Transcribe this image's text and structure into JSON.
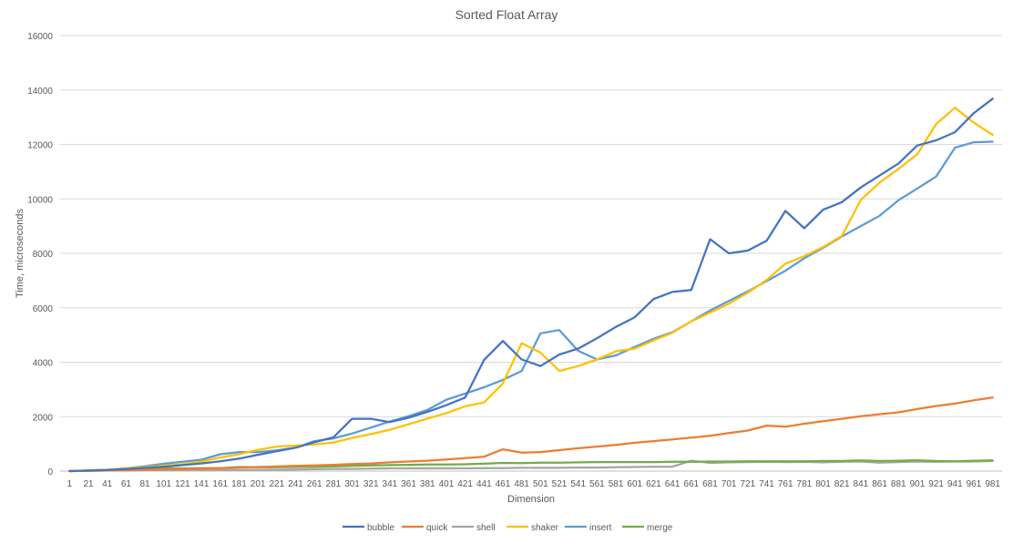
{
  "chart_data": {
    "type": "line",
    "title": "Sorted Float Array",
    "xlabel": "Dimension",
    "ylabel": "Time, microseconds",
    "ylim": [
      0,
      16000
    ],
    "yticks": [
      0,
      2000,
      4000,
      6000,
      8000,
      10000,
      12000,
      14000,
      16000
    ],
    "grid": true,
    "legend_position": "bottom",
    "x": [
      1,
      21,
      41,
      61,
      81,
      101,
      121,
      141,
      161,
      181,
      201,
      221,
      241,
      261,
      281,
      301,
      321,
      341,
      361,
      381,
      401,
      421,
      441,
      461,
      481,
      501,
      521,
      541,
      561,
      581,
      601,
      621,
      641,
      661,
      681,
      701,
      721,
      741,
      761,
      781,
      801,
      821,
      841,
      861,
      881,
      901,
      921,
      941,
      961,
      981
    ],
    "series": [
      {
        "name": "bubble",
        "color": "#4472c4",
        "values": [
          0,
          20,
          40,
          80,
          120,
          160,
          220,
          280,
          360,
          460,
          600,
          730,
          860,
          1060,
          1240,
          1920,
          1920,
          1800,
          1960,
          2180,
          2420,
          2700,
          4080,
          4780,
          4100,
          3860,
          4280,
          4500,
          4880,
          5300,
          5650,
          6320,
          6580,
          6650,
          8520,
          8000,
          8100,
          8460,
          9560,
          8920,
          9600,
          9880,
          10420,
          10860,
          11300,
          11960,
          12150,
          12450,
          13150,
          13680
        ]
      },
      {
        "name": "quick",
        "color": "#ed7d31",
        "values": [
          0,
          10,
          20,
          30,
          40,
          60,
          80,
          90,
          110,
          130,
          150,
          170,
          190,
          210,
          230,
          260,
          280,
          320,
          350,
          380,
          430,
          480,
          530,
          800,
          680,
          700,
          770,
          840,
          900,
          960,
          1040,
          1100,
          1160,
          1230,
          1300,
          1400,
          1490,
          1670,
          1630,
          1740,
          1830,
          1920,
          2020,
          2090,
          2160,
          2280,
          2390,
          2480,
          2600,
          2700
        ]
      },
      {
        "name": "shell",
        "color": "#a5a5a5",
        "values": [
          0,
          10,
          20,
          30,
          40,
          40,
          40,
          40,
          40,
          40,
          50,
          50,
          60,
          70,
          80,
          80,
          90,
          100,
          100,
          100,
          100,
          100,
          110,
          110,
          120,
          120,
          120,
          130,
          130,
          140,
          150,
          160,
          160,
          380,
          300,
          320,
          330,
          340,
          330,
          340,
          320,
          340,
          350,
          310,
          330,
          350,
          340,
          350,
          350,
          370
        ]
      },
      {
        "name": "shaker",
        "color": "#ffc000",
        "values": [
          0,
          20,
          50,
          100,
          150,
          200,
          250,
          350,
          500,
          620,
          780,
          900,
          940,
          980,
          1050,
          1220,
          1360,
          1520,
          1720,
          1930,
          2130,
          2380,
          2520,
          3220,
          4700,
          4350,
          3680,
          3860,
          4100,
          4400,
          4500,
          4800,
          5080,
          5500,
          5820,
          6150,
          6550,
          7020,
          7620,
          7900,
          8230,
          8640,
          9960,
          10600,
          11100,
          11640,
          12750,
          13350,
          12800,
          12350
        ]
      },
      {
        "name": "insert",
        "color": "#5b9bd5",
        "values": [
          0,
          20,
          50,
          100,
          180,
          270,
          340,
          420,
          620,
          700,
          700,
          760,
          860,
          1100,
          1200,
          1380,
          1600,
          1820,
          2020,
          2250,
          2620,
          2850,
          3080,
          3350,
          3680,
          5060,
          5180,
          4420,
          4100,
          4250,
          4560,
          4860,
          5100,
          5500,
          5900,
          6250,
          6600,
          6980,
          7360,
          7820,
          8200,
          8620,
          9000,
          9380,
          9950,
          10380,
          10820,
          11880,
          12080,
          12100
        ]
      },
      {
        "name": "merge",
        "color": "#70ad47",
        "values": [
          0,
          20,
          40,
          60,
          80,
          100,
          100,
          110,
          110,
          150,
          140,
          140,
          150,
          160,
          170,
          190,
          210,
          220,
          230,
          240,
          240,
          250,
          270,
          300,
          290,
          310,
          310,
          320,
          330,
          330,
          330,
          330,
          340,
          340,
          350,
          350,
          360,
          360,
          360,
          360,
          370,
          370,
          390,
          370,
          380,
          400,
          370,
          360,
          380,
          390
        ]
      }
    ]
  }
}
